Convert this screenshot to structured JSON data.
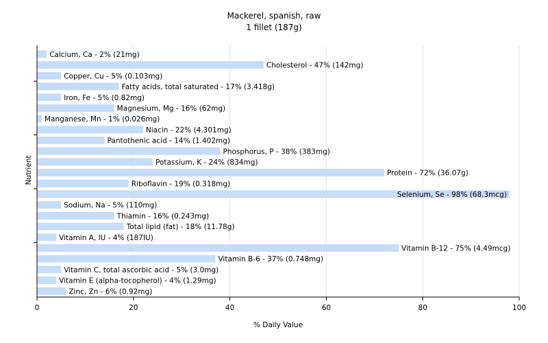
{
  "chart_data": {
    "type": "bar",
    "orientation": "horizontal",
    "title": "Mackerel, spanish, raw",
    "subtitle": "1 fillet (187g)",
    "xlabel": "% Daily Value",
    "ylabel": "Nutrient",
    "xlim": [
      0,
      100
    ],
    "xticks": [
      0,
      20,
      40,
      60,
      80,
      100
    ],
    "grid": true,
    "bar_color": "#c6dcf7",
    "categories": [
      "Calcium, Ca",
      "Cholesterol",
      "Copper, Cu",
      "Fatty acids, total saturated",
      "Iron, Fe",
      "Magnesium, Mg",
      "Manganese, Mn",
      "Niacin",
      "Pantothenic acid",
      "Phosphorus, P",
      "Potassium, K",
      "Protein",
      "Riboflavin",
      "Selenium, Se",
      "Sodium, Na",
      "Thiamin",
      "Total lipid (fat)",
      "Vitamin A, IU",
      "Vitamin B-12",
      "Vitamin B-6",
      "Vitamin C, total ascorbic acid",
      "Vitamin E (alpha-tocopherol)",
      "Zinc, Zn"
    ],
    "values": [
      2,
      47,
      5,
      17,
      5,
      16,
      1,
      22,
      14,
      38,
      24,
      72,
      19,
      98,
      5,
      16,
      18,
      4,
      75,
      37,
      5,
      4,
      6
    ],
    "labels": [
      "Calcium, Ca - 2% (21mg)",
      "Cholesterol - 47% (142mg)",
      "Copper, Cu - 5% (0.103mg)",
      "Fatty acids, total saturated - 17% (3.418g)",
      "Iron, Fe - 5% (0.82mg)",
      "Magnesium, Mg - 16% (62mg)",
      "Manganese, Mn - 1% (0.026mg)",
      "Niacin - 22% (4.301mg)",
      "Pantothenic acid - 14% (1.402mg)",
      "Phosphorus, P - 38% (383mg)",
      "Potassium, K - 24% (834mg)",
      "Protein - 72% (36.07g)",
      "Riboflavin - 19% (0.318mg)",
      "Selenium, Se - 98% (68.3mcg)",
      "Sodium, Na - 5% (110mg)",
      "Thiamin - 16% (0.243mg)",
      "Total lipid (fat) - 18% (11.78g)",
      "Vitamin A, IU - 4% (187IU)",
      "Vitamin B-12 - 75% (4.49mcg)",
      "Vitamin B-6 - 37% (0.748mg)",
      "Vitamin C, total ascorbic acid - 5% (3.0mg)",
      "Vitamin E (alpha-tocopherol) - 4% (1.29mg)",
      "Zinc, Zn - 6% (0.92mg)"
    ]
  }
}
